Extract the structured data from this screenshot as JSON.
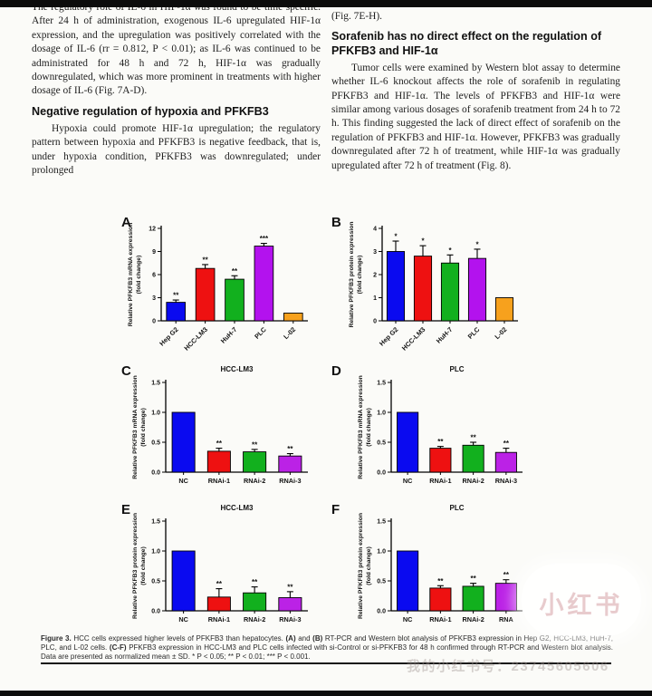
{
  "article": {
    "left_column": {
      "paragraph_1": "The regulatory role of IL-6 in HIF-1α was found to be time specific. After 24 h of administration, exogenous IL-6 upregulated HIF-1α expression, and the upregulation was positively correlated with the dosage of IL-6 (rr = 0.812, P < 0.01); as IL-6 was continued to be administrated for 48 h and 72 h, HIF-1α was gradually downregulated, which was more prominent in treatments with higher dosage of IL-6 (Fig. 7A-D).",
      "heading": "Negative regulation of hypoxia and PFKFB3",
      "paragraph_2": "Hypoxia could promote HIF-1α upregulation; the regulatory pattern between hypoxia and PFKFB3 is negative feedback, that is, under hypoxia condition, PFKFB3 was downregulated; under prolonged"
    },
    "right_column": {
      "fig_ref": "(Fig. 7E-H).",
      "heading": "Sorafenib has no direct effect on the regulation of PFKFB3 and HIF-1α",
      "paragraph": "Tumor cells were examined by Western blot assay to determine whether IL-6 knockout affects the role of sorafenib in regulating PFKFB3 and HIF-1α. The levels of PFKFB3 and HIF-1α were similar among various dosages of sorafenib treatment from 24 h to 72 h. This finding suggested the lack of direct effect of sorafenib on the regulation of PFKFB3 and HIF-1α. However, PFKFB3 was gradually downregulated after 72 h of treatment, while HIF-1α was gradually upregulated after 72 h of treatment (Fig. 8)."
    }
  },
  "figure": {
    "caption_segments": [
      {
        "text": "Figure 3.",
        "bold": true
      },
      {
        "text": " HCC cells expressed higher levels of PFKFB3 than hepatocytes. ",
        "bold": false
      },
      {
        "text": "(A)",
        "bold": true
      },
      {
        "text": " and ",
        "bold": false
      },
      {
        "text": "(B)",
        "bold": true
      },
      {
        "text": " RT-PCR and Western blot analysis of PFKFB3 expression in Hep G2, HCC-LM3, HuH-7, PLC, and L-02 cells. ",
        "bold": false
      },
      {
        "text": "(C-F)",
        "bold": true
      },
      {
        "text": " PFKFB3 expression in HCC-LM3 and PLC cells infected with si-Control or si-PFKFB3 for 48 h confirmed through RT-PCR and Western blot analysis. Data are presented as normalized mean ± SD. * P < 0.05; ** P < 0.01; *** P < 0.001.",
        "bold": false
      }
    ]
  },
  "watermark": {
    "logo_text": "小红书",
    "id_text": "我的小红书号：23745605606"
  },
  "chart_data": [
    {
      "panel": "A",
      "type": "bar",
      "title": "",
      "ylabel_lines": [
        "Relative PFKFB3 mRNA expression",
        "(fold change)"
      ],
      "ylim": [
        0,
        12
      ],
      "yticks": [
        0,
        3,
        6,
        9,
        12
      ],
      "ytick_labels": [
        "0",
        "3",
        "6",
        "9",
        "12"
      ],
      "categories": [
        "Hep G2",
        "HCC-LM3",
        "HuH-7",
        "PLC",
        "L-02"
      ],
      "values": [
        2.4,
        6.8,
        5.4,
        9.7,
        1.0
      ],
      "errors": [
        0.3,
        0.5,
        0.45,
        0.35,
        0
      ],
      "sig": [
        "**",
        "**",
        "**",
        "***",
        ""
      ],
      "colors": [
        "#0a0af0",
        "#ee1111",
        "#12b01e",
        "#b312ee",
        "#f7a11d"
      ],
      "rotate_labels": true,
      "grid": false,
      "legend": "none"
    },
    {
      "panel": "B",
      "type": "bar",
      "title": "",
      "ylabel_lines": [
        "Relative PFKFB3 protein expression",
        "(fold change)"
      ],
      "ylim": [
        0,
        4
      ],
      "yticks": [
        0,
        1,
        2,
        3,
        4
      ],
      "ytick_labels": [
        "0",
        "1",
        "2",
        "3",
        "4"
      ],
      "categories": [
        "Hep G2",
        "HCC-LM3",
        "HuH-7",
        "PLC",
        "L-02"
      ],
      "values": [
        3.0,
        2.8,
        2.5,
        2.7,
        1.0
      ],
      "errors": [
        0.45,
        0.45,
        0.35,
        0.4,
        0
      ],
      "sig": [
        "*",
        "*",
        "*",
        "*",
        ""
      ],
      "colors": [
        "#0a0af0",
        "#ee1111",
        "#12b01e",
        "#b312ee",
        "#f7a11d"
      ],
      "rotate_labels": true,
      "grid": false,
      "legend": "none"
    },
    {
      "panel": "C",
      "type": "bar",
      "title": "HCC-LM3",
      "ylabel_lines": [
        "Relative PFKFB3 mRNA expression",
        "(fold change)"
      ],
      "ylim": [
        0,
        1.5
      ],
      "yticks": [
        0,
        0.5,
        1.0,
        1.5
      ],
      "ytick_labels": [
        "0.0",
        "0.5",
        "1.0",
        "1.5"
      ],
      "categories": [
        "NC",
        "RNAi-1",
        "RNAi-2",
        "RNAi-3"
      ],
      "values": [
        1.0,
        0.35,
        0.34,
        0.27
      ],
      "errors": [
        0,
        0.05,
        0.04,
        0.04
      ],
      "sig": [
        "",
        "**",
        "**",
        "**"
      ],
      "colors": [
        "#0a0af0",
        "#ee1111",
        "#12b01e",
        "#bb22e6"
      ],
      "rotate_labels": false,
      "grid": false,
      "legend": "none"
    },
    {
      "panel": "D",
      "type": "bar",
      "title": "PLC",
      "ylabel_lines": [
        "Relative PFKFB3 mRNA expression",
        "(fold change)"
      ],
      "ylim": [
        0,
        1.5
      ],
      "yticks": [
        0,
        0.5,
        1.0,
        1.5
      ],
      "ytick_labels": [
        "0.0",
        "0.5",
        "1.0",
        "1.5"
      ],
      "categories": [
        "NC",
        "RNAi-1",
        "RNAi-2",
        "RNAi-3"
      ],
      "values": [
        1.0,
        0.4,
        0.45,
        0.33
      ],
      "errors": [
        0,
        0.03,
        0.05,
        0.07
      ],
      "sig": [
        "",
        "**",
        "**",
        "**"
      ],
      "colors": [
        "#0a0af0",
        "#ee1111",
        "#12b01e",
        "#bb22e6"
      ],
      "rotate_labels": false,
      "grid": false,
      "legend": "none"
    },
    {
      "panel": "E",
      "type": "bar",
      "title": "HCC-LM3",
      "ylabel_lines": [
        "Relative PFKFB3 protein expression",
        "(fold change)"
      ],
      "ylim": [
        0,
        1.5
      ],
      "yticks": [
        0,
        0.5,
        1.0,
        1.5
      ],
      "ytick_labels": [
        "0.0",
        "0.5",
        "1.0",
        "1.5"
      ],
      "categories": [
        "NC",
        "RNAi-1",
        "RNAi-2",
        "RNAi-3"
      ],
      "values": [
        1.0,
        0.23,
        0.3,
        0.22
      ],
      "errors": [
        0,
        0.14,
        0.1,
        0.1
      ],
      "sig": [
        "",
        "**",
        "**",
        "**"
      ],
      "colors": [
        "#0a0af0",
        "#ee1111",
        "#12b01e",
        "#bb22e6"
      ],
      "rotate_labels": false,
      "grid": false,
      "legend": "none"
    },
    {
      "panel": "F",
      "type": "bar",
      "title": "PLC",
      "ylabel_lines": [
        "Relative PFKFB3 protein expression",
        "(fold change)"
      ],
      "ylim": [
        0,
        1.5
      ],
      "yticks": [
        0,
        0.5,
        1.0,
        1.5
      ],
      "ytick_labels": [
        "0.0",
        "0.5",
        "1.0",
        "1.5"
      ],
      "categories": [
        "NC",
        "RNAi-1",
        "RNAi-2",
        "RNA"
      ],
      "values": [
        1.0,
        0.38,
        0.41,
        0.46
      ],
      "errors": [
        0,
        0.04,
        0.05,
        0.06
      ],
      "sig": [
        "",
        "**",
        "**",
        "**"
      ],
      "colors": [
        "#0a0af0",
        "#ee1111",
        "#12b01e",
        "#bb22e6"
      ],
      "rotate_labels": false,
      "grid": false,
      "legend": "none"
    }
  ]
}
